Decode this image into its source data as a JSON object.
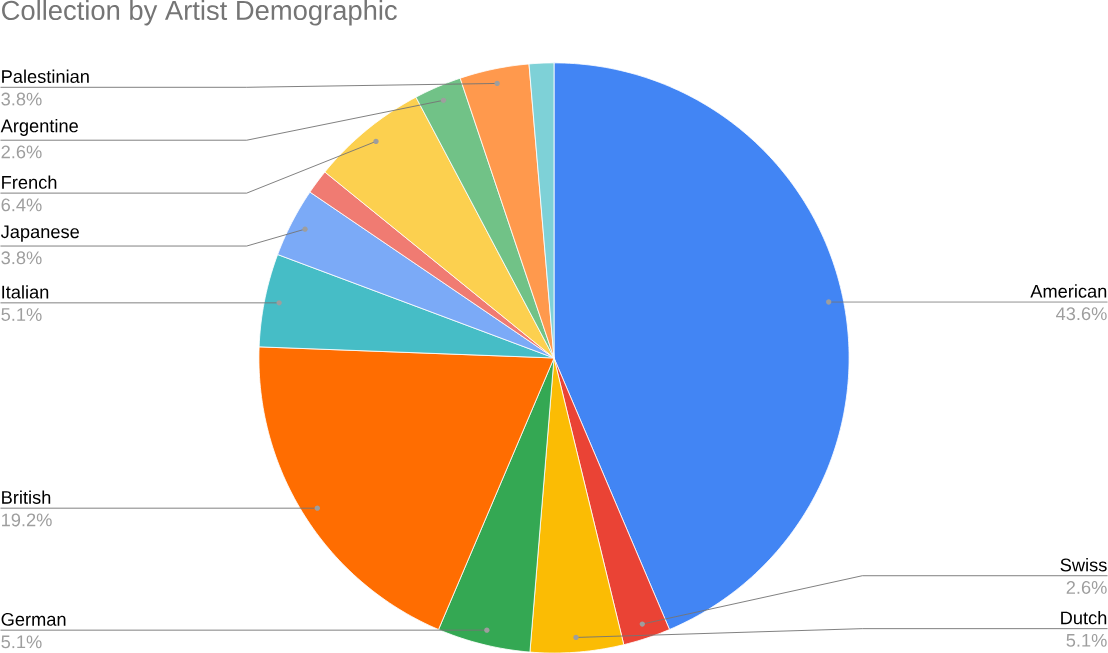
{
  "chart_data": {
    "type": "pie",
    "title": "Collection by Artist Demographic",
    "categories": [
      "American",
      "Swiss",
      "Dutch",
      "German",
      "British",
      "Italian",
      "Japanese",
      null,
      "French",
      "Argentine",
      "Palestinian",
      null
    ],
    "values": [
      43.6,
      2.6,
      5.1,
      5.1,
      19.2,
      5.1,
      3.8,
      1.35,
      6.4,
      2.6,
      3.8,
      1.35
    ],
    "value_labels": [
      "43.6%",
      "2.6%",
      "5.1%",
      "5.1%",
      "19.2%",
      "5.1%",
      "3.8%",
      null,
      "6.4%",
      "2.6%",
      "3.8%",
      null
    ],
    "colors": [
      "#4285f4",
      "#ea4335",
      "#fbbc04",
      "#34a853",
      "#ff6d01",
      "#46bdc6",
      "#7baaf7",
      "#f07b72",
      "#fcd04f",
      "#71c287",
      "#ff994d",
      "#7ed1d7"
    ]
  }
}
